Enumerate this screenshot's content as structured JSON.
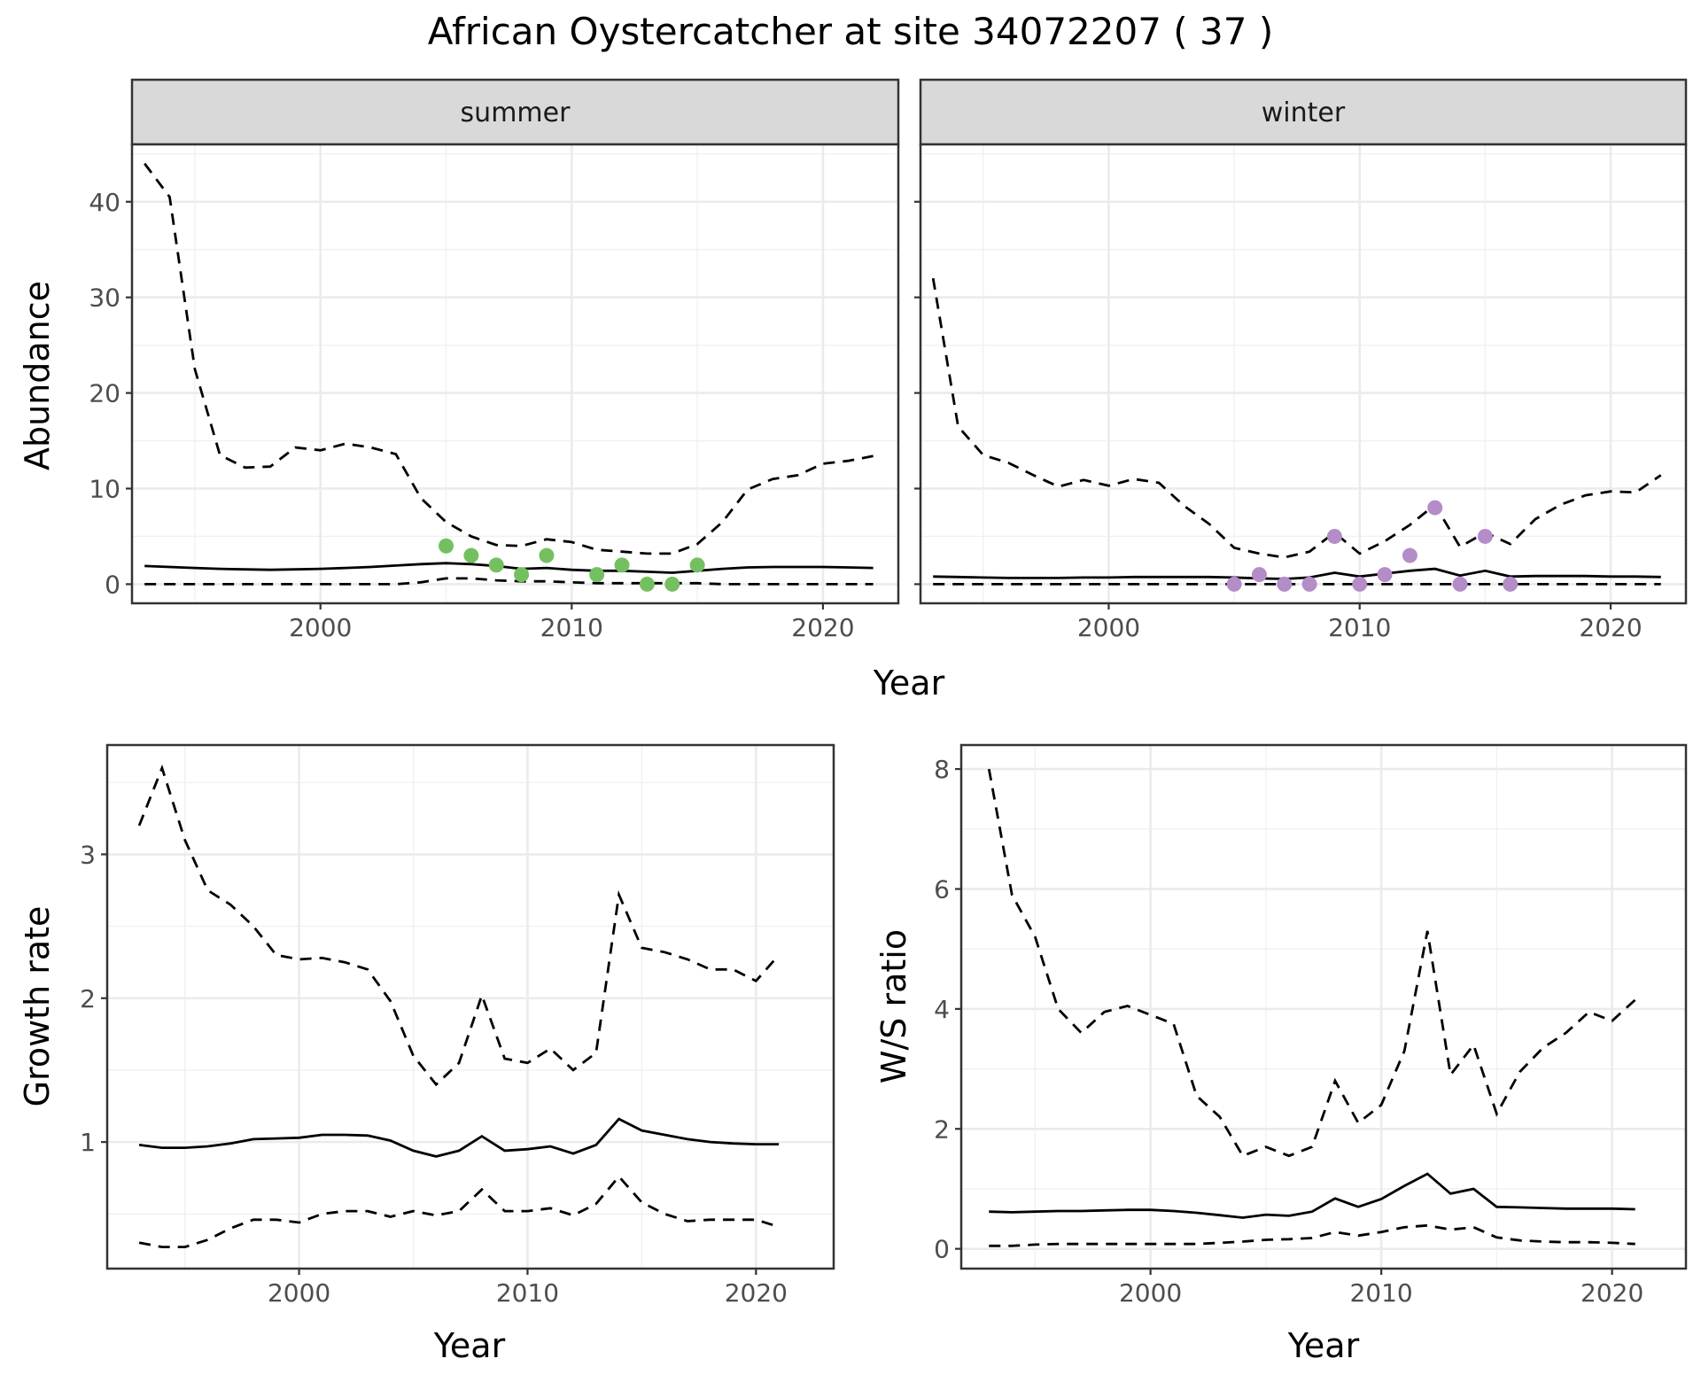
{
  "title": "African Oystercatcher at site 34072207 ( 37 )",
  "chart_data": [
    {
      "id": "abundance",
      "type": "line",
      "ylabel": "Abundance",
      "xlabel": "Year",
      "xlim": [
        1992.5,
        2023
      ],
      "ylim": [
        -2,
        46
      ],
      "x_ticks": [
        2000,
        2010,
        2020
      ],
      "y_ticks": [
        0,
        10,
        20,
        30,
        40
      ],
      "grid": true,
      "facets": [
        {
          "label": "summer",
          "point_color": "#74c060",
          "years": [
            1993,
            1994,
            1995,
            1996,
            1997,
            1998,
            1999,
            2000,
            2001,
            2002,
            2003,
            2004,
            2005,
            2006,
            2007,
            2008,
            2009,
            2010,
            2011,
            2012,
            2013,
            2014,
            2015,
            2016,
            2017,
            2018,
            2019,
            2020,
            2021,
            2022
          ],
          "mean": [
            1.9,
            1.8,
            1.7,
            1.6,
            1.55,
            1.5,
            1.55,
            1.6,
            1.7,
            1.8,
            1.95,
            2.1,
            2.2,
            2.1,
            1.9,
            1.6,
            1.7,
            1.5,
            1.4,
            1.4,
            1.3,
            1.2,
            1.4,
            1.6,
            1.75,
            1.8,
            1.8,
            1.8,
            1.75,
            1.7
          ],
          "upper": [
            44,
            40.5,
            22.5,
            13.5,
            12.2,
            12.3,
            14.3,
            14.0,
            14.7,
            14.3,
            13.6,
            9.0,
            6.5,
            5.0,
            4.1,
            4.0,
            4.7,
            4.4,
            3.6,
            3.4,
            3.2,
            3.2,
            4.2,
            6.5,
            9.9,
            11.0,
            11.4,
            12.6,
            12.9,
            13.4
          ],
          "lower": [
            0,
            0,
            0,
            0,
            0,
            0,
            0,
            0,
            0,
            0,
            0,
            0.2,
            0.6,
            0.6,
            0.4,
            0.3,
            0.3,
            0.2,
            0.1,
            0.1,
            0.1,
            0.1,
            0.1,
            0,
            0,
            0,
            0,
            0,
            0,
            0
          ],
          "observed_years": [
            2005,
            2006,
            2007,
            2008,
            2009,
            2011,
            2012,
            2013,
            2014,
            2015
          ],
          "observed": [
            4,
            3,
            2,
            1,
            3,
            1,
            2,
            0,
            0,
            2
          ]
        },
        {
          "label": "winter",
          "point_color": "#b48cc8",
          "years": [
            1993,
            1994,
            1995,
            1996,
            1997,
            1998,
            1999,
            2000,
            2001,
            2002,
            2003,
            2004,
            2005,
            2006,
            2007,
            2008,
            2009,
            2010,
            2011,
            2012,
            2013,
            2014,
            2015,
            2016,
            2017,
            2018,
            2019,
            2020,
            2021,
            2022
          ],
          "mean": [
            0.8,
            0.75,
            0.7,
            0.65,
            0.65,
            0.65,
            0.7,
            0.7,
            0.75,
            0.75,
            0.75,
            0.75,
            0.7,
            0.6,
            0.55,
            0.7,
            1.2,
            0.8,
            1.1,
            1.4,
            1.6,
            0.9,
            1.4,
            0.8,
            0.85,
            0.85,
            0.85,
            0.8,
            0.8,
            0.75
          ],
          "upper": [
            32,
            16.5,
            13.5,
            12.7,
            11.4,
            10.2,
            10.9,
            10.3,
            11.0,
            10.6,
            8.2,
            6.3,
            3.8,
            3.2,
            2.8,
            3.4,
            5.4,
            3.2,
            4.5,
            6.2,
            8.3,
            3.9,
            5.4,
            4.2,
            6.8,
            8.3,
            9.3,
            9.7,
            9.6,
            11.4
          ],
          "lower": [
            0,
            0,
            0,
            0,
            0,
            0,
            0,
            0,
            0,
            0,
            0,
            0,
            0,
            0,
            0,
            0,
            0,
            0,
            0,
            0,
            0,
            0,
            0,
            0,
            0,
            0,
            0,
            0,
            0,
            0
          ],
          "observed_years": [
            2005,
            2006,
            2007,
            2008,
            2009,
            2010,
            2011,
            2012,
            2013,
            2014,
            2015,
            2016
          ],
          "observed": [
            0,
            1,
            0,
            0,
            5,
            0,
            1,
            3,
            8,
            0,
            5,
            0
          ]
        }
      ]
    },
    {
      "id": "growth",
      "type": "line",
      "ylabel": "Growth rate",
      "xlabel": "Year",
      "xlim": [
        1991.6,
        2023.4
      ],
      "ylim": [
        0.12,
        3.76
      ],
      "x_ticks": [
        2000,
        2010,
        2020
      ],
      "y_ticks": [
        1,
        2,
        3
      ],
      "grid": true,
      "years": [
        1993,
        1994,
        1995,
        1996,
        1997,
        1998,
        1999,
        2000,
        2001,
        2002,
        2003,
        2004,
        2005,
        2006,
        2007,
        2008,
        2009,
        2010,
        2011,
        2012,
        2013,
        2014,
        2015,
        2016,
        2017,
        2018,
        2019,
        2020,
        2021
      ],
      "mean": [
        0.98,
        0.96,
        0.96,
        0.97,
        0.99,
        1.02,
        1.025,
        1.03,
        1.05,
        1.05,
        1.045,
        1.01,
        0.94,
        0.9,
        0.94,
        1.04,
        0.94,
        0.95,
        0.97,
        0.92,
        0.98,
        1.16,
        1.08,
        1.05,
        1.02,
        1.0,
        0.99,
        0.985,
        0.985
      ],
      "upper": [
        3.2,
        3.6,
        3.1,
        2.75,
        2.65,
        2.5,
        2.3,
        2.27,
        2.28,
        2.25,
        2.2,
        1.98,
        1.6,
        1.4,
        1.55,
        2.02,
        1.58,
        1.55,
        1.65,
        1.5,
        1.62,
        2.72,
        2.35,
        2.32,
        2.27,
        2.2,
        2.2,
        2.12,
        2.3
      ],
      "lower": [
        0.3,
        0.27,
        0.27,
        0.32,
        0.4,
        0.46,
        0.46,
        0.44,
        0.5,
        0.52,
        0.52,
        0.48,
        0.52,
        0.49,
        0.52,
        0.67,
        0.52,
        0.52,
        0.54,
        0.49,
        0.57,
        0.76,
        0.58,
        0.5,
        0.45,
        0.46,
        0.46,
        0.46,
        0.41
      ]
    },
    {
      "id": "ratio",
      "type": "line",
      "ylabel": "W/S ratio",
      "xlabel": "Year",
      "xlim": [
        1991.8,
        2023.2
      ],
      "ylim": [
        -0.33,
        8.4
      ],
      "x_ticks": [
        2000,
        2010,
        2020
      ],
      "y_ticks": [
        0,
        2,
        4,
        6,
        8
      ],
      "grid": true,
      "years": [
        1993,
        1994,
        1995,
        1996,
        1997,
        1998,
        1999,
        2000,
        2001,
        2002,
        2003,
        2004,
        2005,
        2006,
        2007,
        2008,
        2009,
        2010,
        2011,
        2012,
        2013,
        2014,
        2015,
        2016,
        2017,
        2018,
        2019,
        2020,
        2021
      ],
      "mean": [
        0.62,
        0.61,
        0.62,
        0.63,
        0.63,
        0.64,
        0.65,
        0.65,
        0.63,
        0.6,
        0.56,
        0.52,
        0.57,
        0.55,
        0.62,
        0.84,
        0.7,
        0.83,
        1.05,
        1.25,
        0.92,
        1.0,
        0.7,
        0.69,
        0.68,
        0.67,
        0.67,
        0.67,
        0.66
      ],
      "upper": [
        8.0,
        5.9,
        5.2,
        4.0,
        3.6,
        3.95,
        4.05,
        3.9,
        3.75,
        2.55,
        2.2,
        1.55,
        1.7,
        1.55,
        1.7,
        2.8,
        2.1,
        2.4,
        3.3,
        5.3,
        2.9,
        3.4,
        2.25,
        2.95,
        3.35,
        3.6,
        3.95,
        3.8,
        4.15
      ],
      "lower": [
        0.05,
        0.05,
        0.07,
        0.08,
        0.08,
        0.08,
        0.08,
        0.08,
        0.08,
        0.08,
        0.1,
        0.12,
        0.15,
        0.16,
        0.18,
        0.28,
        0.22,
        0.28,
        0.36,
        0.39,
        0.32,
        0.36,
        0.19,
        0.14,
        0.12,
        0.11,
        0.11,
        0.1,
        0.08
      ]
    }
  ]
}
